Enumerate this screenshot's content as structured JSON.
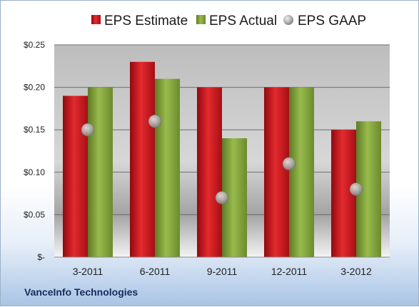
{
  "company_label": "VanceInfo Technologies",
  "colors": {
    "estimate": "#d0131a",
    "actual": "#7fa03a",
    "gaap": "#b7b7b7"
  },
  "chart_data": {
    "type": "bar",
    "title": "",
    "xlabel": "",
    "ylabel": "",
    "categories": [
      "3-2011",
      "6-2011",
      "9-2011",
      "12-2011",
      "3-2012"
    ],
    "ylim": [
      0,
      0.25
    ],
    "yticks": [
      {
        "value": 0,
        "label": "$-"
      },
      {
        "value": 0.05,
        "label": "$0.05"
      },
      {
        "value": 0.1,
        "label": "$0.10"
      },
      {
        "value": 0.15,
        "label": "$0.15"
      },
      {
        "value": 0.2,
        "label": "$0.20"
      },
      {
        "value": 0.25,
        "label": "$0.25"
      }
    ],
    "grid": true,
    "legend_position": "top",
    "series": [
      {
        "name": "EPS Estimate",
        "kind": "bar",
        "values": [
          0.19,
          0.23,
          0.2,
          0.2,
          0.15
        ]
      },
      {
        "name": "EPS Actual",
        "kind": "bar",
        "values": [
          0.2,
          0.21,
          0.14,
          0.2,
          0.16
        ]
      },
      {
        "name": "EPS GAAP",
        "kind": "marker",
        "values": [
          0.15,
          0.16,
          0.07,
          0.11,
          0.08
        ]
      }
    ]
  }
}
